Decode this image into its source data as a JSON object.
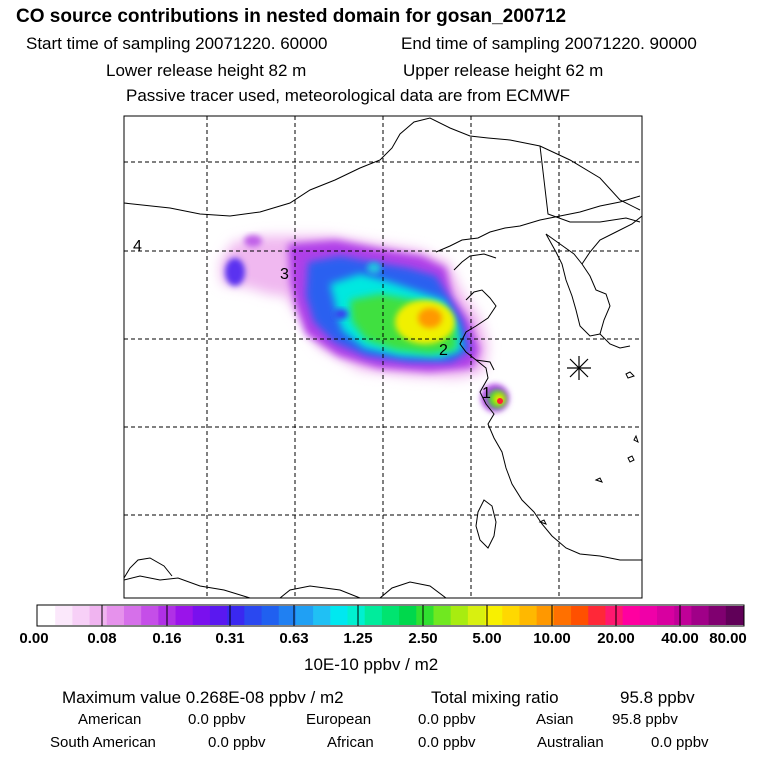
{
  "header": {
    "title": "CO  source contributions in nested domain for gosan_200712",
    "start_label": "Start time of sampling 20071220. 60000",
    "end_label": "End time of sampling 20071220. 90000",
    "lower_label": "Lower release height   82 m",
    "upper_label": "Upper release height   62 m",
    "tracer_note": "Passive tracer used, meteorological data are from ECMWF"
  },
  "map": {
    "region_labels": [
      "1",
      "2",
      "3",
      "4"
    ],
    "receptor_marker": "asterisk-icon"
  },
  "colorbar": {
    "colors": [
      "#ffffff",
      "#fbe8fb",
      "#f7d0f7",
      "#f0b4f0",
      "#e692ec",
      "#d670ea",
      "#c54ee8",
      "#b030e6",
      "#9a14ea",
      "#7a10ee",
      "#5a18f0",
      "#3a28f0",
      "#2a48f0",
      "#2060f0",
      "#2080f2",
      "#20a0f4",
      "#20c0f4",
      "#00e8f0",
      "#00f0d0",
      "#00ec9c",
      "#00e470",
      "#00d84c",
      "#30e030",
      "#70e820",
      "#a8ec10",
      "#d8f010",
      "#f8f000",
      "#ffd800",
      "#ffb800",
      "#ff9800",
      "#ff7000",
      "#ff5000",
      "#ff2838",
      "#ff1870",
      "#ff00a0",
      "#f000a8",
      "#d800a0",
      "#c00098",
      "#a00088",
      "#800070",
      "#600058"
    ],
    "tick_labels": [
      "0.00",
      "0.08",
      "0.16",
      "0.31",
      "0.63",
      "1.25",
      "2.50",
      "5.00",
      "10.00",
      "20.00",
      "40.00",
      "80.00"
    ],
    "unit_label": "10E-10 ppbv / m2"
  },
  "summary": {
    "max_label": "Maximum value  0.268E-08 ppbv / m2",
    "total_label": "Total mixing ratio",
    "total_value": "95.8 ppbv",
    "sources": [
      {
        "name": "American",
        "value": "0.0 ppbv"
      },
      {
        "name": "European",
        "value": "0.0 ppbv"
      },
      {
        "name": "Asian",
        "value": "95.8 ppbv"
      },
      {
        "name": "South American",
        "value": "0.0 ppbv"
      },
      {
        "name": "African",
        "value": "0.0 ppbv"
      },
      {
        "name": "Australian",
        "value": "0.0 ppbv"
      }
    ]
  }
}
